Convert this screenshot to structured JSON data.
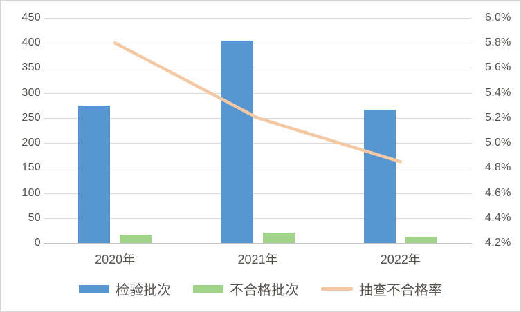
{
  "chart_data": {
    "type": "combo-bar-line",
    "title": "",
    "xlabel": "",
    "ylabel": "",
    "categories": [
      "2020年",
      "2021年",
      "2022年"
    ],
    "series": [
      {
        "key": "inspection-batches",
        "name": "检验批次",
        "type": "bar",
        "axis": "left",
        "color": "#5795d0",
        "values": [
          275,
          404,
          267
        ]
      },
      {
        "key": "failed-batches",
        "name": "不合格批次",
        "type": "bar",
        "axis": "left",
        "color": "#a2d38a",
        "values": [
          16,
          21,
          13
        ]
      },
      {
        "key": "sampling-failure-rate",
        "name": "抽查不合格率",
        "type": "line",
        "axis": "right",
        "color": "#f4c8a3",
        "unit": "%",
        "values": [
          5.8,
          5.2,
          4.85
        ]
      }
    ],
    "left_axis": {
      "min": 0,
      "max": 450,
      "step": 50,
      "tick_labels": [
        "450",
        "400",
        "350",
        "300",
        "250",
        "200",
        "150",
        "100",
        "50",
        "0"
      ]
    },
    "right_axis": {
      "min": 4.2,
      "max": 6.0,
      "step": 0.2,
      "tick_labels": [
        "6.0%",
        "5.8%",
        "5.6%",
        "5.4%",
        "5.2%",
        "5.0%",
        "4.8%",
        "4.6%",
        "4.4%",
        "4.2%"
      ]
    },
    "grid": true,
    "legend_position": "bottom"
  },
  "colors": {
    "background": "#fefefe",
    "gridline": "#d9d9d9",
    "axis_line": "#c2c2c2",
    "text": "#55514d",
    "border": "#d4d4d4"
  }
}
